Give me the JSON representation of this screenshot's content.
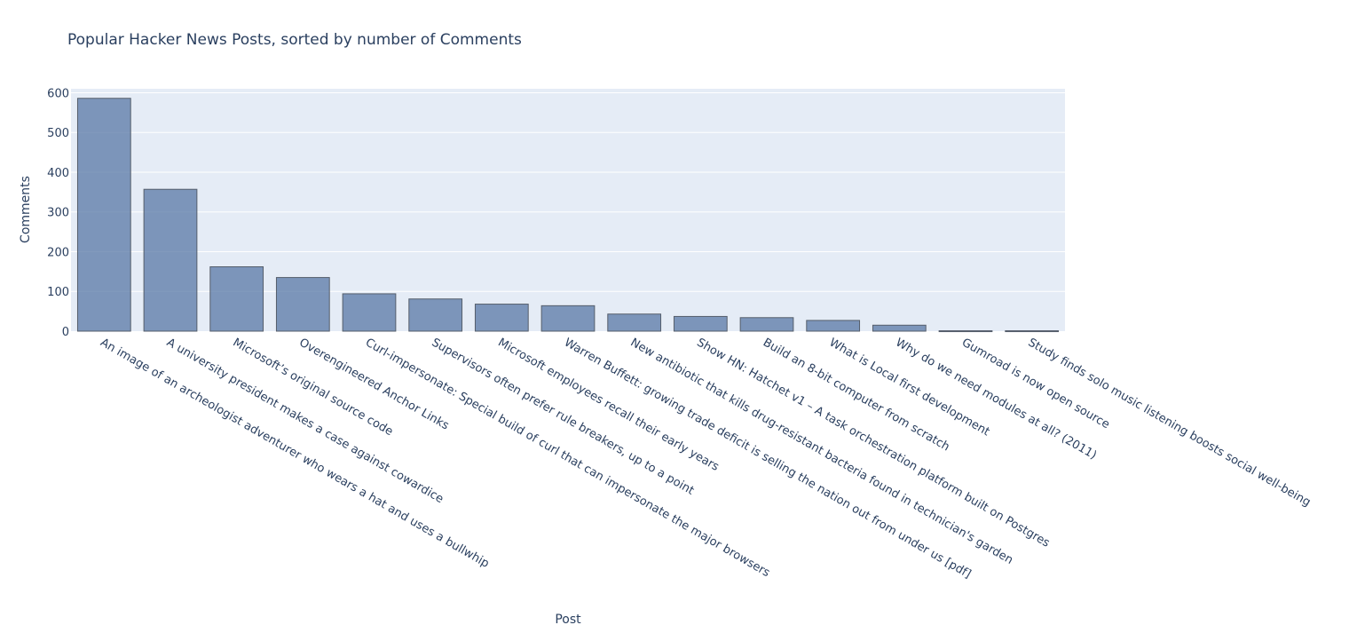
{
  "chart_data": {
    "type": "bar",
    "title": "Popular Hacker News Posts, sorted by number of Comments",
    "xlabel": "Post",
    "ylabel": "Comments",
    "ylim": [
      0,
      610
    ],
    "yticks": [
      0,
      100,
      200,
      300,
      400,
      500,
      600
    ],
    "grid": true,
    "categories": [
      "An image of an archeologist adventurer who wears a hat and uses a bullwhip",
      "A university president makes a case against cowardice",
      "Microsoft’s original source code",
      "Overengineered Anchor Links",
      "Curl-impersonate: Special build of curl that can impersonate the major browsers",
      "Supervisors often prefer rule breakers, up to a point",
      "Microsoft employees recall their early years",
      "Warren Buffett: growing trade deficit is selling the nation out from under us [pdf]",
      "New antibiotic that kills drug-resistant bacteria found in technician's garden",
      "Show HN: Hatchet v1 – A task orchestration platform built on Postgres",
      "Build an 8-bit computer from scratch",
      "What is Local first development",
      "Why do we need modules at all? (2011)",
      "Gumroad is now open source",
      "Study finds solo music listening boosts social well-being"
    ],
    "values": [
      586,
      357,
      162,
      135,
      94,
      81,
      68,
      64,
      43,
      37,
      34,
      27,
      15,
      1,
      1
    ],
    "colors": {
      "bar_fill": "#5878a6",
      "bar_stroke": "#555e6b",
      "plot_bg": "#e5ecf6",
      "text": "#2a3f5f"
    }
  }
}
